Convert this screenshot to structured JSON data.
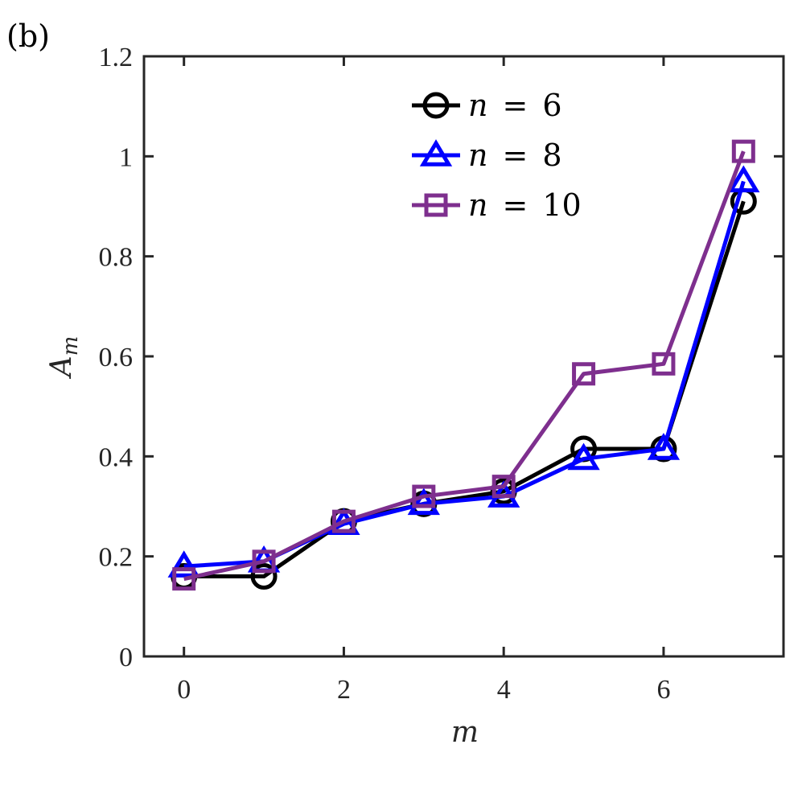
{
  "panel_label": "(b)",
  "chart_data": {
    "type": "line",
    "title": "",
    "xlabel": "m",
    "ylabel": "A_m",
    "ylabel_main": "A",
    "ylabel_sub": "m",
    "xlim": [
      -0.5,
      7.5
    ],
    "ylim": [
      0,
      1.2
    ],
    "x": [
      0,
      1,
      2,
      3,
      4,
      5,
      6,
      7
    ],
    "xticks": [
      0,
      2,
      4,
      6
    ],
    "xtick_labels": [
      "0",
      "2",
      "4",
      "6"
    ],
    "yticks": [
      0,
      0.2,
      0.4,
      0.6,
      0.8,
      1,
      1.2
    ],
    "ytick_labels": [
      "0",
      "0.2",
      "0.4",
      "0.6",
      "0.8",
      "1",
      "1.2"
    ],
    "grid": false,
    "legend_position": "top-right",
    "series": [
      {
        "name": "n = 6",
        "var": "n",
        "eq": "=",
        "num": "6",
        "marker": "circle",
        "color": "#000000",
        "values": [
          0.16,
          0.16,
          0.27,
          0.305,
          0.33,
          0.415,
          0.415,
          0.91
        ]
      },
      {
        "name": "n = 8",
        "var": "n",
        "eq": "=",
        "num": "8",
        "marker": "triangle",
        "color": "#0000ff",
        "values": [
          0.18,
          0.19,
          0.265,
          0.305,
          0.32,
          0.395,
          0.415,
          0.95
        ]
      },
      {
        "name": "n = 10",
        "var": "n",
        "eq": "=",
        "num": "10",
        "marker": "square",
        "color": "#7e2f8e",
        "values": [
          0.155,
          0.19,
          0.27,
          0.32,
          0.34,
          0.565,
          0.585,
          1.01
        ]
      }
    ]
  }
}
